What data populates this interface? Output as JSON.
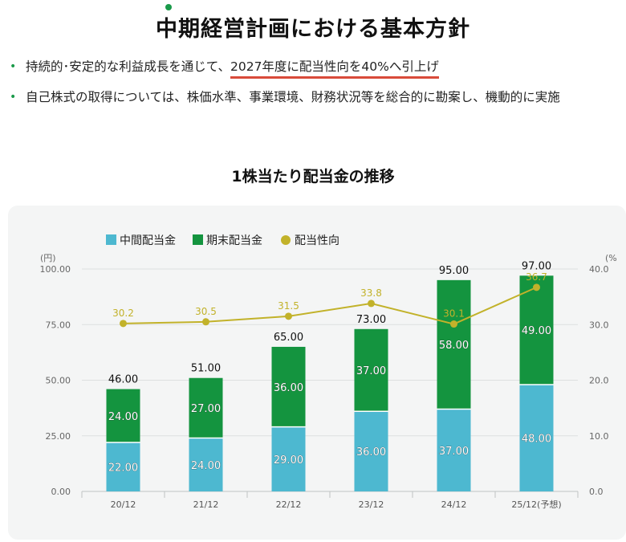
{
  "header": {
    "title": "中期経営計画における基本方針"
  },
  "bullets": [
    {
      "prefix": "持続的･安定的な利益成長を通じて、",
      "highlight": "2027年度に配当性向を40%へ引上げ"
    },
    {
      "prefix": "自己株式の取得については、株価水準、事業環境、財務状況等を総合的に勘案し、機動的に実施",
      "highlight": ""
    }
  ],
  "chart_data": {
    "type": "bar",
    "title": "1株当たり配当金の推移",
    "categories": [
      "20/12",
      "21/12",
      "22/12",
      "23/12",
      "24/12",
      "25/12(予想)"
    ],
    "series": [
      {
        "name": "中間配当金",
        "type": "bar",
        "stack": "dividend",
        "color": "#4db8d0",
        "values": [
          22.0,
          24.0,
          29.0,
          36.0,
          37.0,
          48.0
        ],
        "labels": [
          "22.00",
          "24.00",
          "29.00",
          "36.00",
          "37.00",
          "48.00"
        ]
      },
      {
        "name": "期末配当金",
        "type": "bar",
        "stack": "dividend",
        "color": "#14943f",
        "values": [
          24.0,
          27.0,
          36.0,
          37.0,
          58.0,
          49.0
        ],
        "labels": [
          "24.00",
          "27.00",
          "36.00",
          "37.00",
          "58.00",
          "49.00"
        ]
      },
      {
        "name": "配当性向",
        "type": "line",
        "axis": "right",
        "color": "#c2b22a",
        "values": [
          30.2,
          30.5,
          31.5,
          33.8,
          30.1,
          36.7
        ],
        "labels": [
          "30.2",
          "30.5",
          "31.5",
          "33.8",
          "30.1",
          "36.7"
        ]
      }
    ],
    "totals": [
      "46.00",
      "51.00",
      "65.00",
      "73.00",
      "95.00",
      "97.00"
    ],
    "yleft": {
      "label": "(円)",
      "ylim": [
        0,
        100
      ],
      "ticks": [
        "0.00",
        "25.00",
        "50.00",
        "75.00",
        "100.00"
      ]
    },
    "yright": {
      "label": "(%",
      "ylim": [
        0,
        40
      ],
      "ticks": [
        "0.0",
        "10.0",
        "20.0",
        "30.0",
        "40.0"
      ]
    },
    "grid": true,
    "legend_position": "top-left"
  }
}
